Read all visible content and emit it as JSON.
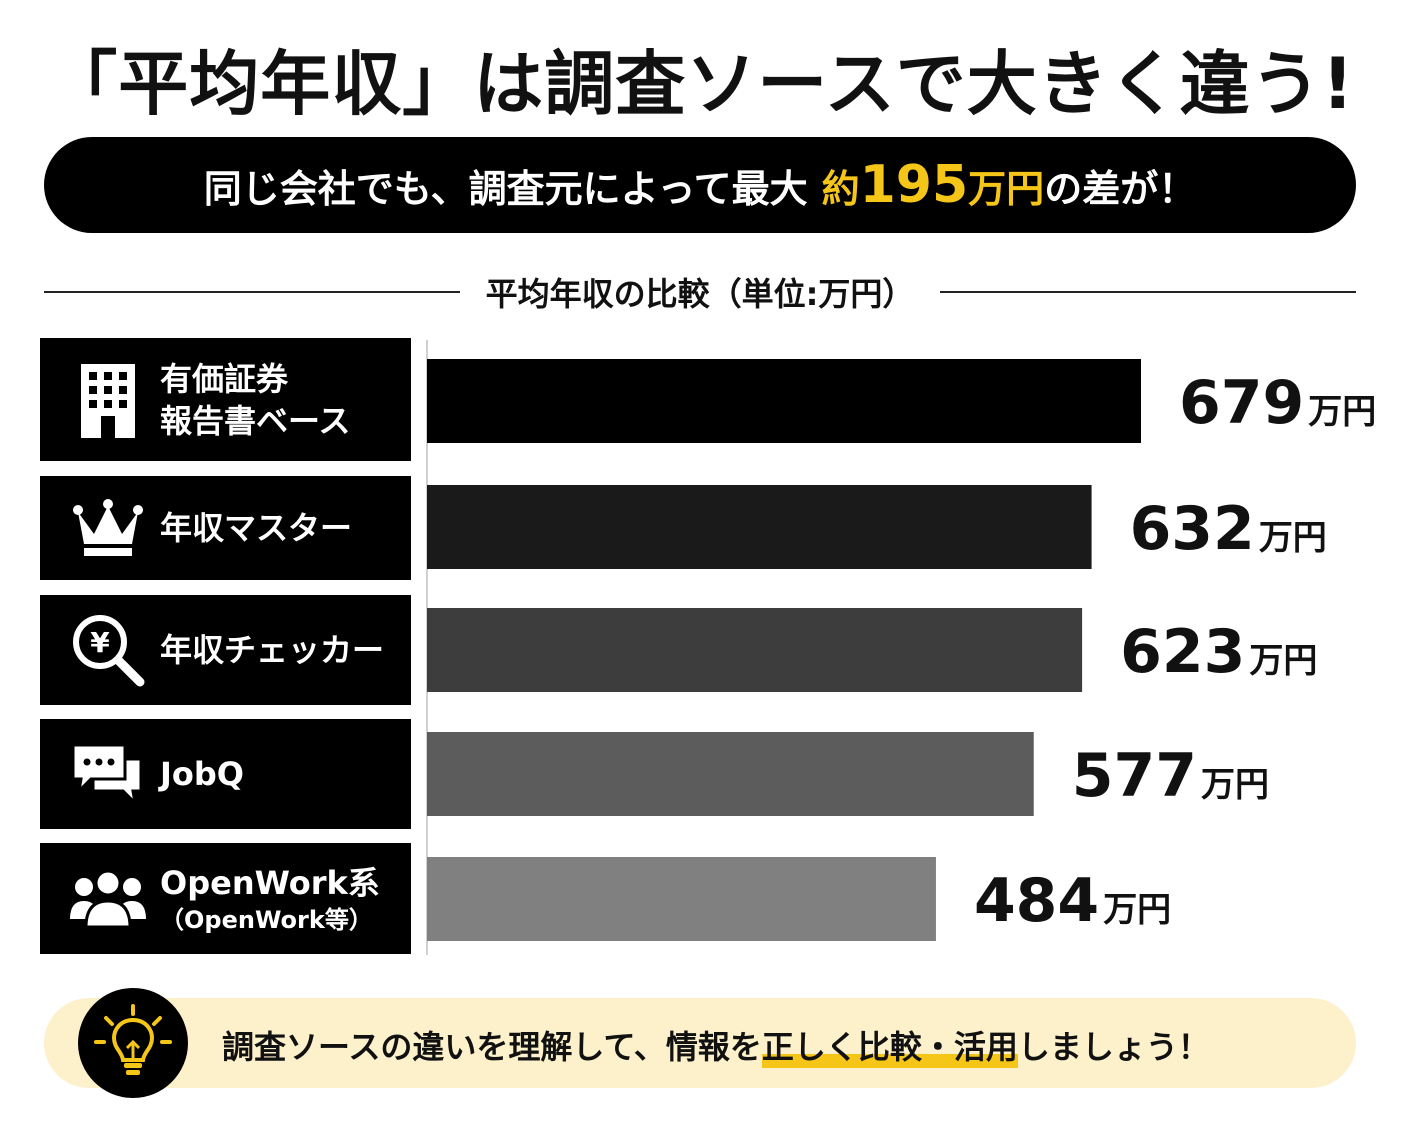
{
  "title": "「平均年収」は調査ソースで大きく違う!",
  "banner": {
    "prefix": "同じ会社でも、調査元によって最大",
    "highlight_pre": "約",
    "highlight_num": "195",
    "highlight_unit": "万円",
    "suffix": "の差が！"
  },
  "subtitle": "平均年収の比較（単位:万円）",
  "chart_data": {
    "type": "bar",
    "orientation": "horizontal",
    "title": "平均年収の比較（単位:万円）",
    "unit": "万円",
    "categories": [
      {
        "label": "有価証券",
        "label2": "報告書ベース",
        "icon": "building-icon"
      },
      {
        "label": "年収マスター",
        "label2": "",
        "icon": "crown-icon"
      },
      {
        "label": "年収チェッカー",
        "label2": "",
        "icon": "yen-search-icon"
      },
      {
        "label": "JobQ",
        "label2": "",
        "icon": "chat-bubbles-icon"
      },
      {
        "label": "OpenWork系",
        "label2": "（OpenWork等）",
        "icon": "users-icon"
      }
    ],
    "values": [
      679,
      632,
      623,
      577,
      484
    ],
    "colors": [
      "#000000",
      "#1a1a1a",
      "#3d3d3d",
      "#5c5c5c",
      "#808080"
    ],
    "xlim": [
      0,
      679
    ],
    "grid": false,
    "legend": "none"
  },
  "footer": {
    "icon": "lightbulb-icon",
    "text_pre": "調査ソースの違いを理解して、情報を",
    "text_emph": "正しく比較・活用",
    "text_post": "しましょう！"
  }
}
